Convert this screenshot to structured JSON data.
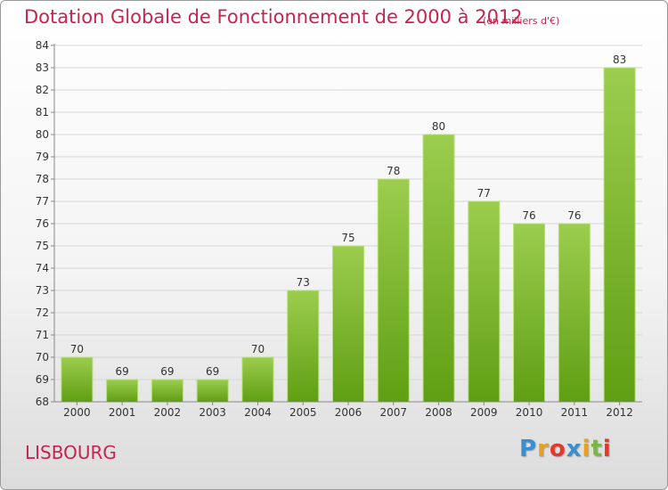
{
  "title": "Dotation Globale de Fonctionnement de 2000 à 2012",
  "subtitle": "(en milliers d'€)",
  "commune": "LISBOURG",
  "brand": {
    "text": "Proxiti",
    "letter_colors": [
      "#3a8fd0",
      "#e8a020",
      "#e23a2a",
      "#3a8fd0",
      "#e8a020",
      "#7ab648",
      "#e23a2a"
    ]
  },
  "colors": {
    "title": "#c8234f",
    "bar_light": "#9ccd4e",
    "bar_dark": "#5f9f13",
    "grid": "#d6d6d6",
    "axis_text": "#333333"
  },
  "chart_data": {
    "type": "bar",
    "categories": [
      "2000",
      "2001",
      "2002",
      "2003",
      "2004",
      "2005",
      "2006",
      "2007",
      "2008",
      "2009",
      "2010",
      "2011",
      "2012"
    ],
    "values": [
      70,
      69,
      69,
      69,
      70,
      73,
      75,
      78,
      80,
      77,
      76,
      76,
      83
    ],
    "data_labels": [
      "70",
      "69",
      "69",
      "69",
      "70",
      "73",
      "75",
      "78",
      "80",
      "77",
      "76",
      "76",
      "83"
    ],
    "ylim": [
      68,
      84
    ],
    "yticks": [
      68,
      69,
      70,
      71,
      72,
      73,
      74,
      75,
      76,
      77,
      78,
      79,
      80,
      81,
      82,
      83,
      84
    ],
    "ytick_labels": [
      "68",
      "69",
      "70",
      "71",
      "72",
      "73",
      "74",
      "75",
      "76",
      "77",
      "78",
      "79",
      "80",
      "81",
      "82",
      "83",
      "84"
    ],
    "grid": true,
    "xlabel": "",
    "ylabel": ""
  }
}
